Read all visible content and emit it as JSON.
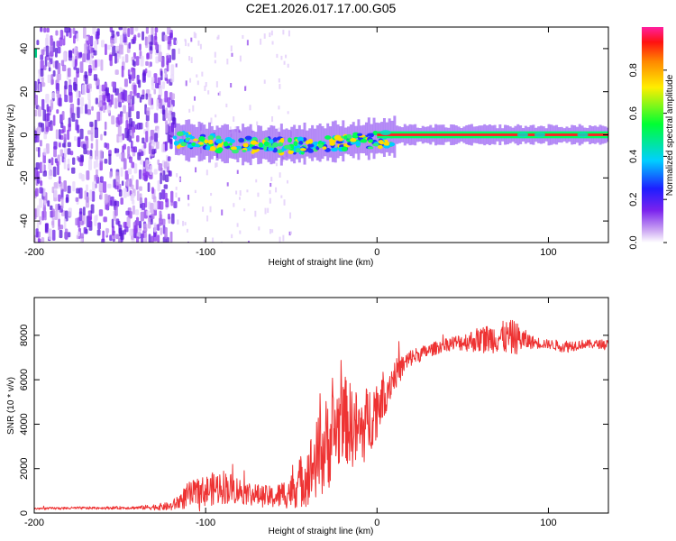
{
  "chart_data": [
    {
      "type": "heatmap",
      "title": "C2E1.2026.017.17.00.G05",
      "xlabel": "Height of straight line (km)",
      "ylabel": "Frequency (Hz)",
      "xlim": [
        -200,
        135
      ],
      "ylim": [
        -50,
        50
      ],
      "xticks": [
        -200,
        -100,
        0,
        100
      ],
      "yticks": [
        -40,
        -20,
        0,
        20,
        40
      ],
      "colorbar": {
        "label": "Normalized spectral amplitude",
        "ticks": [
          0.0,
          0.2,
          0.4,
          0.6,
          0.8
        ],
        "range": [
          0,
          1
        ]
      },
      "features": [
        {
          "name": "broadband-noise",
          "x_range": [
            -200,
            -118
          ],
          "y_range": [
            -50,
            50
          ],
          "amplitude": 0.15
        },
        {
          "name": "scattered-noise",
          "x_range": [
            -118,
            -50
          ],
          "y_range": [
            -50,
            50
          ],
          "amplitude": 0.05
        },
        {
          "name": "direct-signal",
          "x_range": [
            -118,
            135
          ],
          "frequency": 0,
          "amplitude": 0.9
        }
      ]
    },
    {
      "type": "line",
      "title": "",
      "xlabel": "Height of straight line (km)",
      "ylabel": "SNR (10 * v/v)",
      "xlim": [
        -200,
        135
      ],
      "ylim": [
        0,
        9700
      ],
      "xticks": [
        -200,
        -100,
        0,
        100
      ],
      "yticks": [
        0,
        2000,
        4000,
        6000,
        8000
      ],
      "color": "#ee3333",
      "series": [
        {
          "name": "SNR",
          "x": [
            -200,
            -180,
            -160,
            -140,
            -120,
            -110,
            -100,
            -90,
            -80,
            -70,
            -60,
            -50,
            -40,
            -30,
            -20,
            -10,
            0,
            10,
            20,
            30,
            40,
            50,
            60,
            70,
            80,
            90,
            100,
            110,
            120,
            135
          ],
          "values": [
            200,
            220,
            230,
            240,
            300,
            800,
            1000,
            1200,
            1000,
            800,
            700,
            1000,
            1800,
            3000,
            4300,
            3600,
            4800,
            6200,
            7000,
            7300,
            7600,
            7700,
            7800,
            7900,
            7900,
            7700,
            7600,
            7500,
            7600,
            7600
          ],
          "noise": [
            50,
            60,
            60,
            70,
            200,
            600,
            700,
            800,
            600,
            500,
            500,
            800,
            1500,
            2200,
            2000,
            1800,
            1400,
            700,
            400,
            300,
            300,
            400,
            600,
            700,
            800,
            300,
            200,
            300,
            200,
            200
          ]
        }
      ]
    }
  ]
}
